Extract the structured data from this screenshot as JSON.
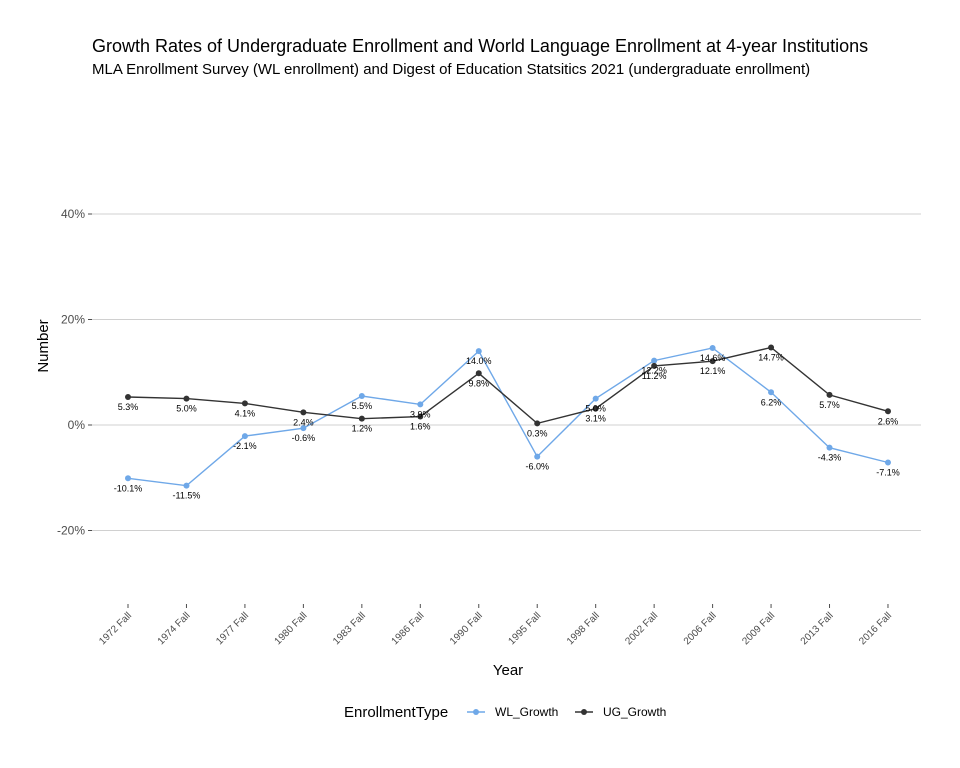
{
  "chart_data": {
    "type": "line",
    "title": "Growth Rates of Undergraduate Enrollment and World Language Enrollment at 4-year Institutions",
    "subtitle": "MLA Enrollment Survey (WL enrollment) and Digest of Education Statsitics 2021 (undergraduate enrollment)",
    "xlabel": "Year",
    "ylabel": "Number",
    "categories": [
      "1972 Fall",
      "1974 Fall",
      "1977 Fall",
      "1980 Fall",
      "1983 Fall",
      "1986 Fall",
      "1990 Fall",
      "1995 Fall",
      "1998 Fall",
      "2002 Fall",
      "2006 Fall",
      "2009 Fall",
      "2013 Fall",
      "2016 Fall"
    ],
    "ylim": [
      -35,
      45
    ],
    "yticks": [
      -20,
      0,
      20,
      40
    ],
    "ytick_labels": [
      "-20%",
      "0%",
      "20%",
      "40%"
    ],
    "grid": "horizontal",
    "legend": {
      "title": "EnrollmentType",
      "placement": "bottom"
    },
    "series": [
      {
        "name": "WL_Growth",
        "color": "#6FA8E8",
        "values": [
          -10.1,
          -11.5,
          -2.1,
          -0.6,
          5.5,
          3.9,
          14.0,
          -6.0,
          5.0,
          12.2,
          14.6,
          6.2,
          -4.3,
          -7.1
        ],
        "labels": [
          "-10.1%",
          "-11.5%",
          "-2.1%",
          "-0.6%",
          "5.5%",
          "3.9%",
          "14.0%",
          "-6.0%",
          "5.0%",
          "12.2%",
          "14.6%",
          "6.2%",
          "-4.3%",
          "-7.1%"
        ]
      },
      {
        "name": "UG_Growth",
        "color": "#333333",
        "values": [
          5.3,
          5.0,
          4.1,
          2.4,
          1.2,
          1.6,
          9.8,
          0.3,
          3.1,
          11.2,
          12.1,
          14.7,
          5.7,
          2.6
        ],
        "labels": [
          "5.3%",
          "5.0%",
          "4.1%",
          "2.4%",
          "1.2%",
          "1.6%",
          "9.8%",
          "0.3%",
          "3.1%",
          "11.2%",
          "12.1%",
          "14.7%",
          "5.7%",
          "2.6%"
        ]
      }
    ]
  }
}
